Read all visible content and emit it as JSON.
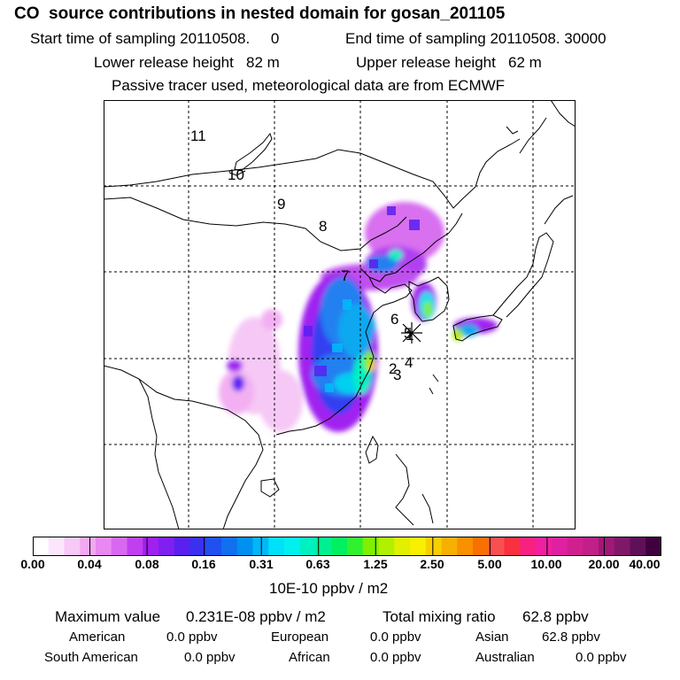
{
  "header": {
    "title": "CO  source contributions in nested domain for gosan_201105",
    "start_time": "Start time of sampling 20110508.     0",
    "end_time": "End time of sampling 20110508. 30000",
    "lower_release": "Lower release height   82 m",
    "upper_release": "Upper release height   62 m",
    "tracer_note": "Passive tracer used, meteorological data are from ECMWF"
  },
  "map": {
    "trajectory_labels": [
      "11",
      "10",
      "9",
      "8",
      "7",
      "6",
      "5",
      "1",
      "4",
      "2",
      "3"
    ],
    "receptor_marker": "receptor-star"
  },
  "colorbar": {
    "tick_labels": [
      "0.00",
      "0.04",
      "0.08",
      "0.16",
      "0.31",
      "0.63",
      "1.25",
      "2.50",
      "5.00",
      "10.00",
      "20.00",
      "40.00"
    ],
    "colors": [
      "#ffffff",
      "#fde6fd",
      "#f8c8f8",
      "#f2a8f2",
      "#e888f0",
      "#d868f0",
      "#c040f0",
      "#a020f0",
      "#8020f0",
      "#5a20f0",
      "#3a30f0",
      "#2050f0",
      "#1070f0",
      "#0090f0",
      "#00b8f8",
      "#00e0f8",
      "#00f0f0",
      "#00f0c0",
      "#00f090",
      "#00f060",
      "#30f030",
      "#80f000",
      "#b0f000",
      "#e0f000",
      "#f8f000",
      "#f8d000",
      "#f8b000",
      "#f89000",
      "#f87000",
      "#f85050",
      "#f83040",
      "#f82080",
      "#f020a0",
      "#e020a0",
      "#d02090",
      "#c02088",
      "#a01878",
      "#801868",
      "#601058",
      "#400040"
    ],
    "unit": "10E-10 ppbv / m2"
  },
  "summary": {
    "max_label": "Maximum value",
    "max_value": "0.231E-08 ppbv / m2",
    "total_label": "Total mixing ratio",
    "total_value": "62.8 ppbv",
    "regions": [
      {
        "name": "American",
        "value": "0.0 ppbv"
      },
      {
        "name": "European",
        "value": "0.0 ppbv"
      },
      {
        "name": "Asian",
        "value": "62.8 ppbv"
      },
      {
        "name": "South American",
        "value": "0.0 ppbv"
      },
      {
        "name": "African",
        "value": "0.0 ppbv"
      },
      {
        "name": "Australian",
        "value": "0.0 ppbv"
      }
    ]
  }
}
